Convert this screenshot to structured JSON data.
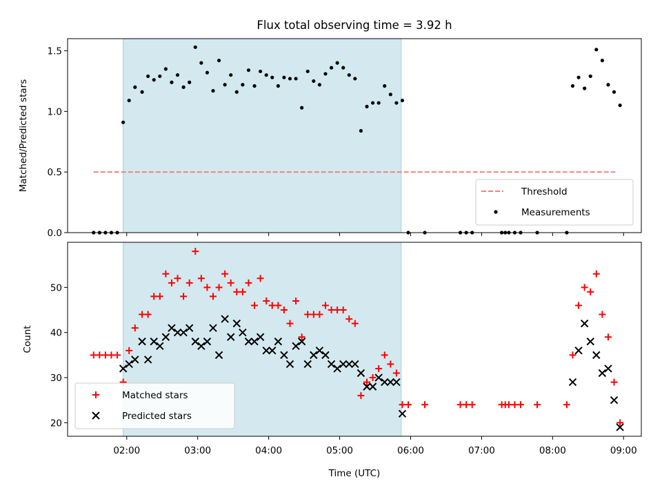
{
  "chart_data": [
    {
      "type": "scatter",
      "title": "Flux total observing time = 3.92 h",
      "ylabel": "Matched/Predicted stars",
      "xlabel": "",
      "xlim": [
        "01:10",
        "09:15"
      ],
      "ylim": [
        0,
        1.6
      ],
      "yticks": [
        0.0,
        0.5,
        1.0,
        1.5
      ],
      "ytick_labels": [
        "0.0",
        "0.5",
        "1.0",
        "1.5"
      ],
      "shaded_region": [
        "01:57",
        "05:52"
      ],
      "legend": {
        "position": "lower-right",
        "entries": [
          "Threshold",
          "Measurements"
        ]
      },
      "series": [
        {
          "name": "Threshold",
          "kind": "line",
          "style": "dashed",
          "color": "#f08080",
          "points": [
            [
              "01:32",
              0.5
            ],
            [
              "08:53",
              0.5
            ]
          ]
        },
        {
          "name": "Measurements",
          "kind": "scatter",
          "color": "#000000",
          "points": [
            [
              "01:32",
              0.0
            ],
            [
              "01:37",
              0.0
            ],
            [
              "01:42",
              0.0
            ],
            [
              "01:47",
              0.0
            ],
            [
              "01:52",
              0.0
            ],
            [
              "01:57",
              0.91
            ],
            [
              "02:02",
              1.09
            ],
            [
              "02:07",
              1.2
            ],
            [
              "02:13",
              1.16
            ],
            [
              "02:18",
              1.29
            ],
            [
              "02:23",
              1.26
            ],
            [
              "02:28",
              1.29
            ],
            [
              "02:33",
              1.35
            ],
            [
              "02:38",
              1.24
            ],
            [
              "02:43",
              1.3
            ],
            [
              "02:48",
              1.2
            ],
            [
              "02:53",
              1.24
            ],
            [
              "02:58",
              1.53
            ],
            [
              "03:03",
              1.4
            ],
            [
              "03:08",
              1.32
            ],
            [
              "03:13",
              1.17
            ],
            [
              "03:18",
              1.42
            ],
            [
              "03:23",
              1.22
            ],
            [
              "03:28",
              1.3
            ],
            [
              "03:33",
              1.16
            ],
            [
              "03:38",
              1.22
            ],
            [
              "03:43",
              1.34
            ],
            [
              "03:48",
              1.21
            ],
            [
              "03:53",
              1.33
            ],
            [
              "03:58",
              1.3
            ],
            [
              "04:03",
              1.28
            ],
            [
              "04:08",
              1.21
            ],
            [
              "04:13",
              1.28
            ],
            [
              "04:18",
              1.27
            ],
            [
              "04:23",
              1.27
            ],
            [
              "04:28",
              1.03
            ],
            [
              "04:33",
              1.33
            ],
            [
              "04:38",
              1.25
            ],
            [
              "04:43",
              1.22
            ],
            [
              "04:48",
              1.31
            ],
            [
              "04:53",
              1.36
            ],
            [
              "04:58",
              1.4
            ],
            [
              "05:03",
              1.36
            ],
            [
              "05:08",
              1.3
            ],
            [
              "05:13",
              1.27
            ],
            [
              "05:18",
              0.84
            ],
            [
              "05:23",
              1.04
            ],
            [
              "05:28",
              1.07
            ],
            [
              "05:33",
              1.07
            ],
            [
              "05:38",
              1.21
            ],
            [
              "05:43",
              1.14
            ],
            [
              "05:48",
              1.07
            ],
            [
              "05:53",
              1.09
            ],
            [
              "05:58",
              0.0
            ],
            [
              "06:12",
              0.0
            ],
            [
              "06:42",
              0.0
            ],
            [
              "06:47",
              0.0
            ],
            [
              "06:52",
              0.0
            ],
            [
              "07:17",
              0.0
            ],
            [
              "07:20",
              0.0
            ],
            [
              "07:23",
              0.0
            ],
            [
              "07:28",
              0.0
            ],
            [
              "07:33",
              0.0
            ],
            [
              "07:47",
              0.0
            ],
            [
              "08:12",
              0.0
            ],
            [
              "08:17",
              1.21
            ],
            [
              "08:22",
              1.28
            ],
            [
              "08:27",
              1.19
            ],
            [
              "08:32",
              1.29
            ],
            [
              "08:37",
              1.51
            ],
            [
              "08:42",
              1.42
            ],
            [
              "08:47",
              1.22
            ],
            [
              "08:52",
              1.16
            ],
            [
              "08:57",
              1.05
            ]
          ]
        }
      ]
    },
    {
      "type": "scatter",
      "title": "",
      "ylabel": "Count",
      "xlabel": "Time (UTC)",
      "xlim": [
        "01:10",
        "09:15"
      ],
      "ylim": [
        17,
        60
      ],
      "xticks": [
        "02:00",
        "03:00",
        "04:00",
        "05:00",
        "06:00",
        "07:00",
        "08:00",
        "09:00"
      ],
      "yticks": [
        20,
        30,
        40,
        50
      ],
      "ytick_labels": [
        "20",
        "30",
        "40",
        "50"
      ],
      "shaded_region": [
        "01:57",
        "05:52"
      ],
      "legend": {
        "position": "lower-left",
        "entries": [
          "Matched stars",
          "Predicted stars"
        ]
      },
      "series": [
        {
          "name": "Matched stars",
          "marker": "plus",
          "color": "#ff0000",
          "points": [
            [
              "01:32",
              35
            ],
            [
              "01:37",
              35
            ],
            [
              "01:42",
              35
            ],
            [
              "01:47",
              35
            ],
            [
              "01:52",
              35
            ],
            [
              "01:57",
              29
            ],
            [
              "02:02",
              36
            ],
            [
              "02:07",
              41
            ],
            [
              "02:13",
              44
            ],
            [
              "02:18",
              44
            ],
            [
              "02:23",
              48
            ],
            [
              "02:28",
              48
            ],
            [
              "02:33",
              53
            ],
            [
              "02:38",
              51
            ],
            [
              "02:43",
              52
            ],
            [
              "02:48",
              48
            ],
            [
              "02:53",
              51
            ],
            [
              "02:58",
              58
            ],
            [
              "03:03",
              52
            ],
            [
              "03:08",
              50
            ],
            [
              "03:13",
              48
            ],
            [
              "03:18",
              50
            ],
            [
              "03:23",
              53
            ],
            [
              "03:28",
              51
            ],
            [
              "03:33",
              49
            ],
            [
              "03:38",
              49
            ],
            [
              "03:43",
              51
            ],
            [
              "03:48",
              46
            ],
            [
              "03:53",
              52
            ],
            [
              "03:58",
              47
            ],
            [
              "04:03",
              46
            ],
            [
              "04:08",
              46
            ],
            [
              "04:13",
              45
            ],
            [
              "04:18",
              42
            ],
            [
              "04:23",
              47
            ],
            [
              "04:28",
              39
            ],
            [
              "04:33",
              44
            ],
            [
              "04:38",
              44
            ],
            [
              "04:43",
              44
            ],
            [
              "04:48",
              46
            ],
            [
              "04:53",
              45
            ],
            [
              "04:58",
              45
            ],
            [
              "05:03",
              45
            ],
            [
              "05:08",
              43
            ],
            [
              "05:13",
              42
            ],
            [
              "05:18",
              26
            ],
            [
              "05:23",
              29
            ],
            [
              "05:28",
              30
            ],
            [
              "05:33",
              32
            ],
            [
              "05:38",
              35
            ],
            [
              "05:43",
              33
            ],
            [
              "05:48",
              31
            ],
            [
              "05:53",
              24
            ],
            [
              "05:58",
              24
            ],
            [
              "06:12",
              24
            ],
            [
              "06:42",
              24
            ],
            [
              "06:47",
              24
            ],
            [
              "06:52",
              24
            ],
            [
              "07:17",
              24
            ],
            [
              "07:20",
              24
            ],
            [
              "07:23",
              24
            ],
            [
              "07:28",
              24
            ],
            [
              "07:33",
              24
            ],
            [
              "07:47",
              24
            ],
            [
              "08:12",
              24
            ],
            [
              "08:17",
              35
            ],
            [
              "08:22",
              46
            ],
            [
              "08:27",
              50
            ],
            [
              "08:32",
              49
            ],
            [
              "08:37",
              53
            ],
            [
              "08:42",
              44
            ],
            [
              "08:47",
              39
            ],
            [
              "08:52",
              29
            ],
            [
              "08:57",
              20
            ]
          ]
        },
        {
          "name": "Predicted stars",
          "marker": "x",
          "color": "#000000",
          "points": [
            [
              "01:57",
              32
            ],
            [
              "02:02",
              33
            ],
            [
              "02:07",
              34
            ],
            [
              "02:13",
              38
            ],
            [
              "02:18",
              34
            ],
            [
              "02:23",
              38
            ],
            [
              "02:28",
              37
            ],
            [
              "02:33",
              39
            ],
            [
              "02:38",
              41
            ],
            [
              "02:43",
              40
            ],
            [
              "02:48",
              40
            ],
            [
              "02:53",
              41
            ],
            [
              "02:58",
              38
            ],
            [
              "03:03",
              37
            ],
            [
              "03:08",
              38
            ],
            [
              "03:13",
              41
            ],
            [
              "03:18",
              35
            ],
            [
              "03:23",
              43
            ],
            [
              "03:28",
              39
            ],
            [
              "03:33",
              42
            ],
            [
              "03:38",
              40
            ],
            [
              "03:43",
              38
            ],
            [
              "03:48",
              38
            ],
            [
              "03:53",
              39
            ],
            [
              "03:58",
              36
            ],
            [
              "04:03",
              36
            ],
            [
              "04:08",
              38
            ],
            [
              "04:13",
              35
            ],
            [
              "04:18",
              33
            ],
            [
              "04:23",
              37
            ],
            [
              "04:28",
              38
            ],
            [
              "04:33",
              33
            ],
            [
              "04:38",
              35
            ],
            [
              "04:43",
              36
            ],
            [
              "04:48",
              35
            ],
            [
              "04:53",
              33
            ],
            [
              "04:58",
              32
            ],
            [
              "05:03",
              33
            ],
            [
              "05:08",
              33
            ],
            [
              "05:13",
              33
            ],
            [
              "05:18",
              31
            ],
            [
              "05:23",
              28
            ],
            [
              "05:28",
              28
            ],
            [
              "05:33",
              30
            ],
            [
              "05:38",
              29
            ],
            [
              "05:43",
              29
            ],
            [
              "05:48",
              29
            ],
            [
              "05:53",
              22
            ],
            [
              "08:17",
              29
            ],
            [
              "08:22",
              36
            ],
            [
              "08:27",
              42
            ],
            [
              "08:32",
              38
            ],
            [
              "08:37",
              35
            ],
            [
              "08:42",
              31
            ],
            [
              "08:47",
              32
            ],
            [
              "08:52",
              25
            ],
            [
              "08:57",
              19
            ]
          ]
        }
      ]
    }
  ],
  "colors": {
    "shaded": "#d3e9ef",
    "threshold": "#f08080",
    "matched": "#ff0000",
    "predicted": "#000000",
    "measurements": "#000000"
  }
}
